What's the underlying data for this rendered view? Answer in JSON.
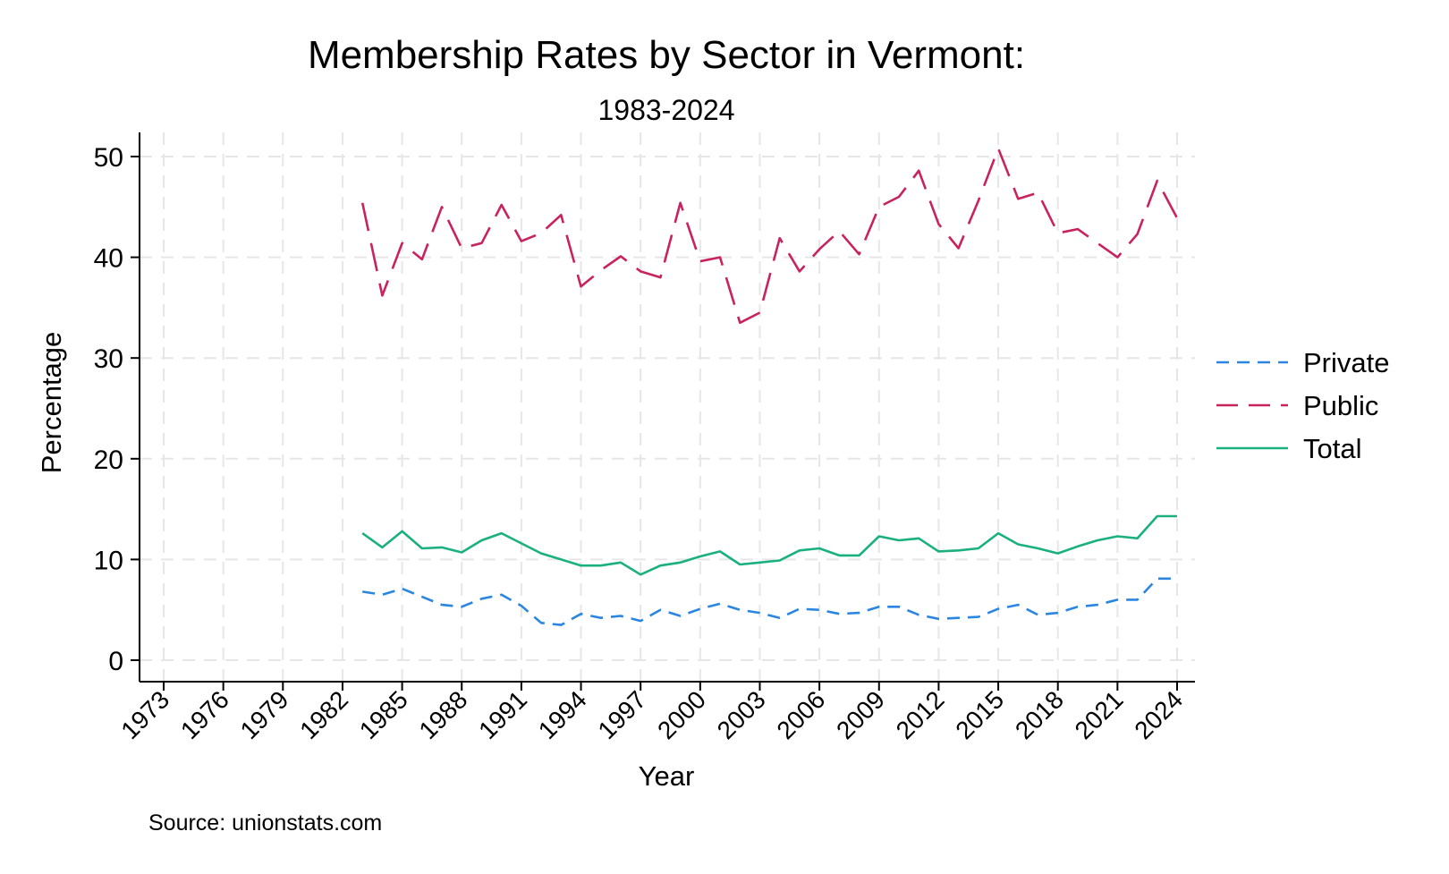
{
  "chart_data": {
    "type": "line",
    "title": "Membership Rates by Sector in Vermont:",
    "subtitle": "1983-2024",
    "xlabel": "Year",
    "ylabel": "Percentage",
    "source": "Source: unionstats.com",
    "xlim": [
      1973,
      2024
    ],
    "ylim": [
      0,
      50
    ],
    "xticks": [
      1973,
      1976,
      1979,
      1982,
      1985,
      1988,
      1991,
      1994,
      1997,
      2000,
      2003,
      2006,
      2009,
      2012,
      2015,
      2018,
      2021,
      2024
    ],
    "yticks": [
      0,
      10,
      20,
      30,
      40,
      50
    ],
    "grid": true,
    "legend_position": "right",
    "x": [
      1983,
      1984,
      1985,
      1986,
      1987,
      1988,
      1989,
      1990,
      1991,
      1992,
      1993,
      1994,
      1995,
      1996,
      1997,
      1998,
      1999,
      2000,
      2001,
      2002,
      2003,
      2004,
      2005,
      2006,
      2007,
      2008,
      2009,
      2010,
      2011,
      2012,
      2013,
      2014,
      2015,
      2016,
      2017,
      2018,
      2019,
      2020,
      2021,
      2022,
      2023,
      2024
    ],
    "series": [
      {
        "name": "Private",
        "color": "#2a86e0",
        "dash": "short",
        "values": [
          6.8,
          6.5,
          7.1,
          6.3,
          5.5,
          5.3,
          6.1,
          6.5,
          5.4,
          3.7,
          3.5,
          4.6,
          4.2,
          4.4,
          3.9,
          5.0,
          4.4,
          5.1,
          5.6,
          5.0,
          4.7,
          4.2,
          5.1,
          5.0,
          4.6,
          4.7,
          5.3,
          5.3,
          4.5,
          4.1,
          4.2,
          4.3,
          5.1,
          5.5,
          4.5,
          4.7,
          5.3,
          5.5,
          6.0,
          6.0,
          8.1,
          8.1
        ]
      },
      {
        "name": "Public",
        "color": "#c8235e",
        "dash": "long",
        "values": [
          45.4,
          36.2,
          41.4,
          39.8,
          45.0,
          40.9,
          41.4,
          45.2,
          41.6,
          42.4,
          44.2,
          37.1,
          38.7,
          40.1,
          38.6,
          38.0,
          45.4,
          39.6,
          40.0,
          33.5,
          34.5,
          41.9,
          38.6,
          40.8,
          42.6,
          40.3,
          45.0,
          46.0,
          48.6,
          43.3,
          40.9,
          45.6,
          50.8,
          45.8,
          46.4,
          42.4,
          42.8,
          41.4,
          40.0,
          42.3,
          47.6,
          43.9
        ]
      },
      {
        "name": "Total",
        "color": "#1ab07f",
        "dash": "solid",
        "values": [
          12.6,
          11.2,
          12.8,
          11.1,
          11.2,
          10.7,
          11.9,
          12.6,
          11.6,
          10.6,
          10.0,
          9.4,
          9.4,
          9.7,
          8.5,
          9.4,
          9.7,
          10.3,
          10.8,
          9.5,
          9.7,
          9.9,
          10.9,
          11.1,
          10.4,
          10.4,
          12.3,
          11.9,
          12.1,
          10.8,
          10.9,
          11.1,
          12.6,
          11.5,
          11.1,
          10.6,
          11.3,
          11.9,
          12.3,
          12.1,
          14.3,
          14.3
        ]
      }
    ]
  }
}
